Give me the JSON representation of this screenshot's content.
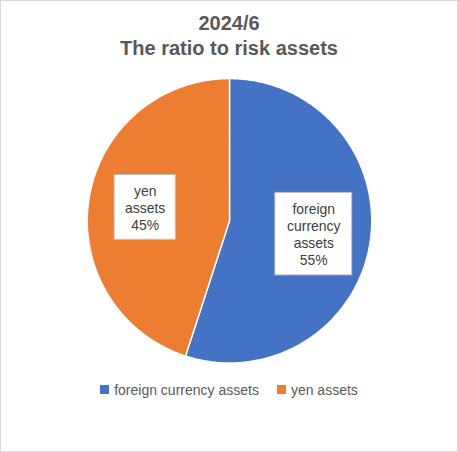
{
  "chart_data": {
    "type": "pie",
    "title": "2024/6",
    "subtitle": "The ratio to risk assets",
    "categories": [
      "foreign currency assets",
      "yen assets"
    ],
    "values": [
      55,
      45
    ],
    "value_labels": [
      "55%",
      "45%"
    ],
    "colors": [
      "#4472c4",
      "#ed7d31"
    ],
    "data_labels": true,
    "legend": "bottom"
  }
}
